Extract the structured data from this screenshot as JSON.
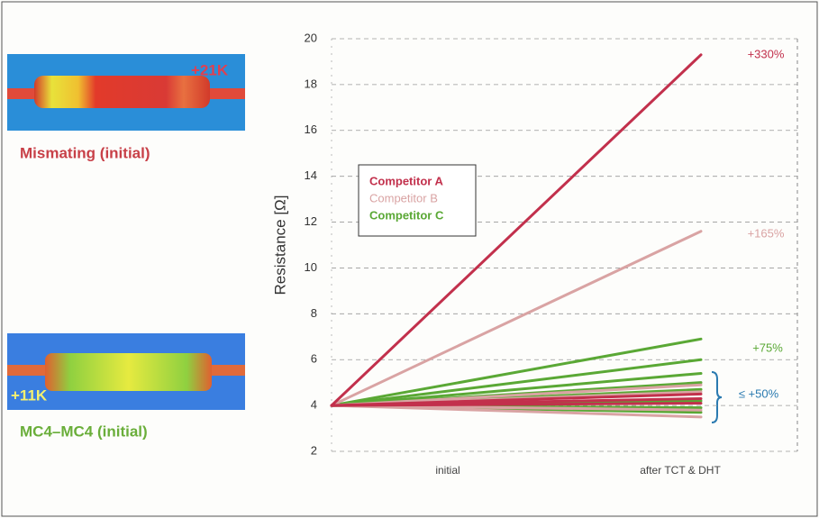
{
  "thermal_images": [
    {
      "delta": "+21K",
      "label": "Mismating (initial)"
    },
    {
      "delta": "+11K",
      "label": "MC4–MC4 (initial)"
    }
  ],
  "chart_data": {
    "type": "line",
    "y_label": "Resistance [Ω]",
    "x": [
      "initial",
      "after TCT & DHT"
    ],
    "ylim": [
      2,
      20
    ],
    "yticks": [
      2,
      4,
      6,
      8,
      10,
      12,
      14,
      16,
      18,
      20
    ],
    "grid": true,
    "legend": "upper left",
    "series": [
      {
        "name": "Competitor A",
        "color": "#c2304c",
        "values": [
          [
            4,
            19.3
          ],
          [
            4,
            4.5
          ],
          [
            4,
            4.3
          ],
          [
            4,
            4.1
          ]
        ]
      },
      {
        "name": "Competitor B",
        "color": "#d9a3a3",
        "values": [
          [
            4,
            11.6
          ],
          [
            4,
            4.9
          ],
          [
            4,
            4.6
          ],
          [
            4,
            3.8
          ],
          [
            4,
            3.5
          ]
        ]
      },
      {
        "name": "Competitor C",
        "color": "#5aa835",
        "values": [
          [
            4,
            6.9
          ],
          [
            4,
            6.0
          ],
          [
            4,
            5.4
          ],
          [
            4,
            5.0
          ],
          [
            4,
            4.7
          ],
          [
            4,
            4.2
          ],
          [
            4,
            3.9
          ],
          [
            4,
            3.7
          ]
        ]
      }
    ],
    "annotations": [
      {
        "text": "+330%",
        "color": "#c2304c"
      },
      {
        "text": "+165%",
        "color": "#d9a3a3"
      },
      {
        "text": "+75%",
        "color": "#5aa835"
      },
      {
        "text": "≤ +50%",
        "color": "#2a7ab0"
      }
    ]
  }
}
